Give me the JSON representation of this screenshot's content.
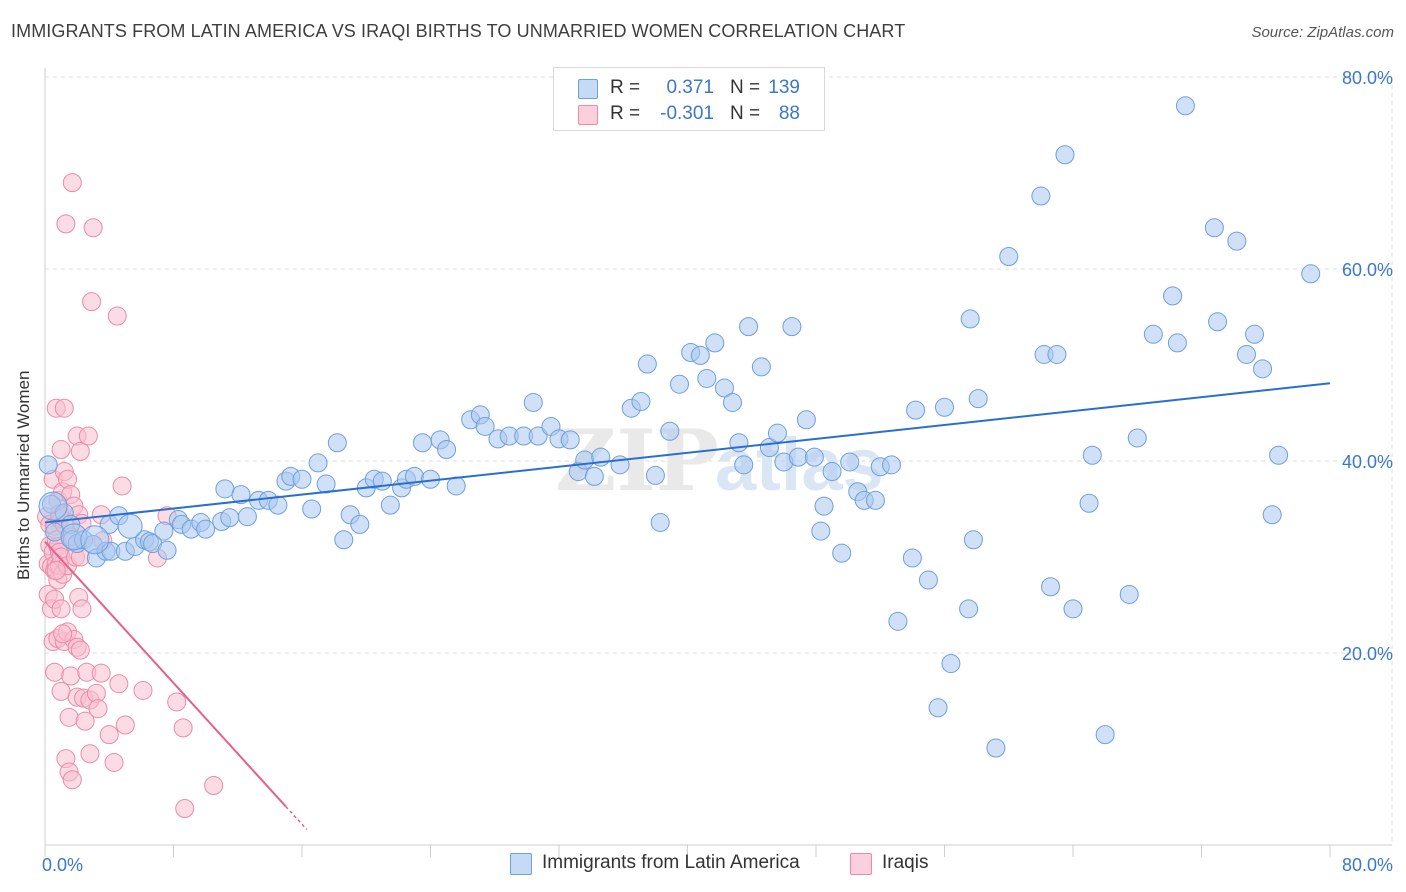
{
  "title": "IMMIGRANTS FROM LATIN AMERICA VS IRAQI BIRTHS TO UNMARRIED WOMEN CORRELATION CHART",
  "source": "Source: ZipAtlas.com",
  "watermark": "ZIPatlas",
  "legend_top": {
    "rows": [
      {
        "r_label": "R =",
        "r_value": "0.371",
        "n_label": "N =",
        "n_value": "139"
      },
      {
        "r_label": "R =",
        "r_value": "-0.301",
        "n_label": "N =",
        "n_value": "88"
      }
    ]
  },
  "legend_bottom": {
    "items": [
      {
        "label": "Immigrants from Latin America"
      },
      {
        "label": "Iraqis"
      }
    ]
  },
  "colors": {
    "blue_fill": "#a9c8f0",
    "blue_stroke": "#6f9fdc",
    "blue_line": "#2a6fd0",
    "pink_fill": "#f7bfd0",
    "pink_stroke": "#ec8aa8",
    "pink_line": "#e5608c",
    "axis_text": "#3a78c9",
    "grid": "#dcdcdc"
  },
  "chart_data": {
    "type": "scatter",
    "title": "IMMIGRANTS FROM LATIN AMERICA VS IRAQI BIRTHS TO UNMARRIED WOMEN CORRELATION CHART",
    "xlabel": "",
    "ylabel": "Births to Unmarried Women",
    "xlim": [
      0,
      80
    ],
    "ylim": [
      0,
      80
    ],
    "x_tick_labels": [
      "0.0%",
      "80.0%"
    ],
    "y_tick_labels": [
      "20.0%",
      "40.0%",
      "60.0%",
      "80.0%"
    ],
    "y_ticks": [
      20,
      40,
      60,
      80
    ],
    "grid": true,
    "legend_position": "top-center",
    "series": [
      {
        "name": "Immigrants from Latin America",
        "R": 0.371,
        "N": 139,
        "trend": {
          "x0": 0,
          "y0": 33.6,
          "x1": 80,
          "y1": 48.1
        },
        "points": [
          [
            0.2,
            39.6
          ],
          [
            0.4,
            35.5
          ],
          [
            0.6,
            32.6
          ],
          [
            1.2,
            34.6
          ],
          [
            1.6,
            33.4
          ],
          [
            1.7,
            31.8
          ],
          [
            2.0,
            31.4
          ],
          [
            2.4,
            31.8
          ],
          [
            3.0,
            31.3
          ],
          [
            3.2,
            29.9
          ],
          [
            3.8,
            30.6
          ],
          [
            4.0,
            33.4
          ],
          [
            4.1,
            30.6
          ],
          [
            4.6,
            34.3
          ],
          [
            5.0,
            30.6
          ],
          [
            5.6,
            31.1
          ],
          [
            6.2,
            31.8
          ],
          [
            6.5,
            31.6
          ],
          [
            6.7,
            31.4
          ],
          [
            7.4,
            32.7
          ],
          [
            7.6,
            30.7
          ],
          [
            8.3,
            33.9
          ],
          [
            8.5,
            33.4
          ],
          [
            9.1,
            32.9
          ],
          [
            9.7,
            33.6
          ],
          [
            10.0,
            32.9
          ],
          [
            11.0,
            33.7
          ],
          [
            11.2,
            37.1
          ],
          [
            11.5,
            34.1
          ],
          [
            12.2,
            36.5
          ],
          [
            12.6,
            34.2
          ],
          [
            13.3,
            35.9
          ],
          [
            13.9,
            35.9
          ],
          [
            14.5,
            35.4
          ],
          [
            15.0,
            37.9
          ],
          [
            15.3,
            38.4
          ],
          [
            16.0,
            38.1
          ],
          [
            16.6,
            35.0
          ],
          [
            17.0,
            39.8
          ],
          [
            17.5,
            37.6
          ],
          [
            18.2,
            41.9
          ],
          [
            18.6,
            31.8
          ],
          [
            19.0,
            34.4
          ],
          [
            19.6,
            33.4
          ],
          [
            20.0,
            37.2
          ],
          [
            20.5,
            38.1
          ],
          [
            21.0,
            37.9
          ],
          [
            21.5,
            35.4
          ],
          [
            22.2,
            37.2
          ],
          [
            22.5,
            38.1
          ],
          [
            23.0,
            38.4
          ],
          [
            23.5,
            41.9
          ],
          [
            24.0,
            38.1
          ],
          [
            24.6,
            42.2
          ],
          [
            25.0,
            41.2
          ],
          [
            25.6,
            37.4
          ],
          [
            26.5,
            44.3
          ],
          [
            27.1,
            44.8
          ],
          [
            27.4,
            43.6
          ],
          [
            28.2,
            42.3
          ],
          [
            28.9,
            42.6
          ],
          [
            29.8,
            42.6
          ],
          [
            30.4,
            46.1
          ],
          [
            30.7,
            42.6
          ],
          [
            31.5,
            43.6
          ],
          [
            32.0,
            42.3
          ],
          [
            32.7,
            42.2
          ],
          [
            33.2,
            38.9
          ],
          [
            33.6,
            40.1
          ],
          [
            34.2,
            38.4
          ],
          [
            34.6,
            40.4
          ],
          [
            35.8,
            39.6
          ],
          [
            36.5,
            45.5
          ],
          [
            37.1,
            46.2
          ],
          [
            37.5,
            50.1
          ],
          [
            38.0,
            38.5
          ],
          [
            38.3,
            33.6
          ],
          [
            38.9,
            43.1
          ],
          [
            39.5,
            48.0
          ],
          [
            40.2,
            51.3
          ],
          [
            40.8,
            51.0
          ],
          [
            41.2,
            48.6
          ],
          [
            41.7,
            52.3
          ],
          [
            42.3,
            47.6
          ],
          [
            42.8,
            46.1
          ],
          [
            43.2,
            41.9
          ],
          [
            43.5,
            39.6
          ],
          [
            43.8,
            54.0
          ],
          [
            44.6,
            49.8
          ],
          [
            45.1,
            41.4
          ],
          [
            45.6,
            42.9
          ],
          [
            46.0,
            39.9
          ],
          [
            46.5,
            54.0
          ],
          [
            46.9,
            40.4
          ],
          [
            47.4,
            44.3
          ],
          [
            47.9,
            40.4
          ],
          [
            48.3,
            32.7
          ],
          [
            48.5,
            35.3
          ],
          [
            49.0,
            38.9
          ],
          [
            49.6,
            30.4
          ],
          [
            50.1,
            39.9
          ],
          [
            50.6,
            36.8
          ],
          [
            51.0,
            35.9
          ],
          [
            51.7,
            35.9
          ],
          [
            52.0,
            39.4
          ],
          [
            52.7,
            39.6
          ],
          [
            53.1,
            23.3
          ],
          [
            54.0,
            29.9
          ],
          [
            54.2,
            45.3
          ],
          [
            55.0,
            27.6
          ],
          [
            55.6,
            14.3
          ],
          [
            56.0,
            45.6
          ],
          [
            56.4,
            18.9
          ],
          [
            57.5,
            24.6
          ],
          [
            57.8,
            31.8
          ],
          [
            57.6,
            54.8
          ],
          [
            58.1,
            46.5
          ],
          [
            59.2,
            10.1
          ],
          [
            60.0,
            61.3
          ],
          [
            62.0,
            67.6
          ],
          [
            62.2,
            51.1
          ],
          [
            62.6,
            26.9
          ],
          [
            63.0,
            51.1
          ],
          [
            63.5,
            71.9
          ],
          [
            64.0,
            24.6
          ],
          [
            65.0,
            35.6
          ],
          [
            65.2,
            40.6
          ],
          [
            66.0,
            11.5
          ],
          [
            67.5,
            26.1
          ],
          [
            68.0,
            42.4
          ],
          [
            69.0,
            53.2
          ],
          [
            70.2,
            57.2
          ],
          [
            70.5,
            52.3
          ],
          [
            71.0,
            77.0
          ],
          [
            72.8,
            64.3
          ],
          [
            73.0,
            54.5
          ],
          [
            74.2,
            62.9
          ],
          [
            74.8,
            51.1
          ],
          [
            75.3,
            53.2
          ],
          [
            75.8,
            49.6
          ],
          [
            76.4,
            34.4
          ],
          [
            76.8,
            40.6
          ],
          [
            78.8,
            59.5
          ]
        ]
      },
      {
        "name": "Iraqis",
        "R": -0.301,
        "N": 88,
        "trend": {
          "x0": 0,
          "y0": 31.6,
          "x1": 15.0,
          "y1": 4.0
        },
        "points": [
          [
            0.1,
            34.2
          ],
          [
            0.2,
            29.3
          ],
          [
            0.2,
            26.1
          ],
          [
            0.3,
            33.4
          ],
          [
            0.3,
            31.2
          ],
          [
            0.4,
            29.0
          ],
          [
            0.4,
            24.6
          ],
          [
            0.5,
            38.1
          ],
          [
            0.5,
            30.5
          ],
          [
            0.5,
            21.2
          ],
          [
            0.6,
            33.2
          ],
          [
            0.6,
            28.6
          ],
          [
            0.6,
            25.6
          ],
          [
            0.6,
            18.0
          ],
          [
            0.7,
            45.5
          ],
          [
            0.7,
            31.8
          ],
          [
            0.7,
            29.3
          ],
          [
            0.8,
            35.9
          ],
          [
            0.8,
            31.1
          ],
          [
            0.8,
            27.6
          ],
          [
            0.8,
            21.5
          ],
          [
            0.9,
            34.0
          ],
          [
            0.9,
            30.5
          ],
          [
            0.9,
            29.1
          ],
          [
            1.0,
            41.2
          ],
          [
            1.0,
            30.0
          ],
          [
            1.0,
            24.6
          ],
          [
            1.0,
            16.0
          ],
          [
            1.1,
            36.8
          ],
          [
            1.1,
            28.2
          ],
          [
            1.2,
            45.5
          ],
          [
            1.2,
            38.9
          ],
          [
            1.2,
            33.4
          ],
          [
            1.2,
            21.2
          ],
          [
            1.3,
            9.0
          ],
          [
            1.4,
            38.1
          ],
          [
            1.4,
            29.1
          ],
          [
            1.4,
            22.2
          ],
          [
            1.5,
            13.3
          ],
          [
            1.5,
            7.6
          ],
          [
            1.6,
            36.5
          ],
          [
            1.6,
            32.1
          ],
          [
            1.6,
            17.6
          ],
          [
            1.7,
            69.0
          ],
          [
            1.7,
            6.8
          ],
          [
            1.8,
            35.3
          ],
          [
            1.8,
            21.4
          ],
          [
            1.9,
            30.0
          ],
          [
            2.0,
            42.6
          ],
          [
            2.0,
            20.6
          ],
          [
            2.0,
            15.4
          ],
          [
            2.1,
            34.4
          ],
          [
            2.1,
            25.8
          ],
          [
            2.2,
            41.0
          ],
          [
            2.2,
            20.3
          ],
          [
            2.3,
            33.5
          ],
          [
            2.3,
            24.6
          ],
          [
            2.4,
            15.3
          ],
          [
            2.5,
            12.9
          ],
          [
            2.6,
            18.0
          ],
          [
            2.7,
            42.6
          ],
          [
            2.8,
            9.5
          ],
          [
            2.8,
            15.1
          ],
          [
            2.9,
            56.6
          ],
          [
            3.0,
            64.3
          ],
          [
            3.2,
            15.8
          ],
          [
            3.3,
            14.2
          ],
          [
            3.5,
            34.4
          ],
          [
            3.5,
            17.9
          ],
          [
            3.6,
            31.7
          ],
          [
            4.0,
            11.5
          ],
          [
            4.3,
            8.6
          ],
          [
            4.5,
            55.1
          ],
          [
            4.6,
            16.8
          ],
          [
            4.8,
            37.4
          ],
          [
            5.0,
            12.5
          ],
          [
            6.1,
            16.1
          ],
          [
            7.0,
            29.9
          ],
          [
            7.6,
            34.3
          ],
          [
            8.2,
            14.9
          ],
          [
            8.6,
            12.2
          ],
          [
            8.7,
            3.8
          ],
          [
            10.5,
            6.2
          ],
          [
            1.3,
            64.7
          ],
          [
            0.9,
            34.5
          ],
          [
            0.7,
            28.6
          ],
          [
            1.1,
            22.0
          ],
          [
            2.2,
            30.0
          ]
        ]
      }
    ]
  }
}
